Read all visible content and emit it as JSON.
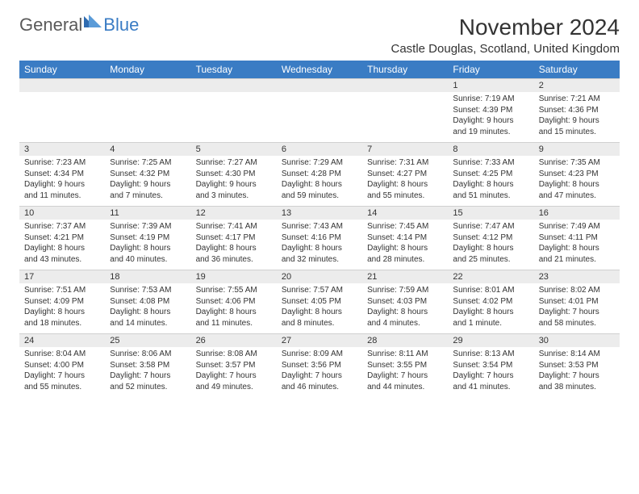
{
  "logo": {
    "text1": "General",
    "text2": "Blue"
  },
  "title": "November 2024",
  "location": "Castle Douglas, Scotland, United Kingdom",
  "colors": {
    "header_bg": "#3a7cc4",
    "header_text": "#ffffff",
    "daynum_bg": "#ececec",
    "text": "#333333",
    "logo_gray": "#5a5a5a",
    "logo_blue": "#3a7cc4"
  },
  "daynames": [
    "Sunday",
    "Monday",
    "Tuesday",
    "Wednesday",
    "Thursday",
    "Friday",
    "Saturday"
  ],
  "weeks": [
    [
      {
        "num": "",
        "sunrise": "",
        "sunset": "",
        "dl1": "",
        "dl2": ""
      },
      {
        "num": "",
        "sunrise": "",
        "sunset": "",
        "dl1": "",
        "dl2": ""
      },
      {
        "num": "",
        "sunrise": "",
        "sunset": "",
        "dl1": "",
        "dl2": ""
      },
      {
        "num": "",
        "sunrise": "",
        "sunset": "",
        "dl1": "",
        "dl2": ""
      },
      {
        "num": "",
        "sunrise": "",
        "sunset": "",
        "dl1": "",
        "dl2": ""
      },
      {
        "num": "1",
        "sunrise": "Sunrise: 7:19 AM",
        "sunset": "Sunset: 4:39 PM",
        "dl1": "Daylight: 9 hours",
        "dl2": "and 19 minutes."
      },
      {
        "num": "2",
        "sunrise": "Sunrise: 7:21 AM",
        "sunset": "Sunset: 4:36 PM",
        "dl1": "Daylight: 9 hours",
        "dl2": "and 15 minutes."
      }
    ],
    [
      {
        "num": "3",
        "sunrise": "Sunrise: 7:23 AM",
        "sunset": "Sunset: 4:34 PM",
        "dl1": "Daylight: 9 hours",
        "dl2": "and 11 minutes."
      },
      {
        "num": "4",
        "sunrise": "Sunrise: 7:25 AM",
        "sunset": "Sunset: 4:32 PM",
        "dl1": "Daylight: 9 hours",
        "dl2": "and 7 minutes."
      },
      {
        "num": "5",
        "sunrise": "Sunrise: 7:27 AM",
        "sunset": "Sunset: 4:30 PM",
        "dl1": "Daylight: 9 hours",
        "dl2": "and 3 minutes."
      },
      {
        "num": "6",
        "sunrise": "Sunrise: 7:29 AM",
        "sunset": "Sunset: 4:28 PM",
        "dl1": "Daylight: 8 hours",
        "dl2": "and 59 minutes."
      },
      {
        "num": "7",
        "sunrise": "Sunrise: 7:31 AM",
        "sunset": "Sunset: 4:27 PM",
        "dl1": "Daylight: 8 hours",
        "dl2": "and 55 minutes."
      },
      {
        "num": "8",
        "sunrise": "Sunrise: 7:33 AM",
        "sunset": "Sunset: 4:25 PM",
        "dl1": "Daylight: 8 hours",
        "dl2": "and 51 minutes."
      },
      {
        "num": "9",
        "sunrise": "Sunrise: 7:35 AM",
        "sunset": "Sunset: 4:23 PM",
        "dl1": "Daylight: 8 hours",
        "dl2": "and 47 minutes."
      }
    ],
    [
      {
        "num": "10",
        "sunrise": "Sunrise: 7:37 AM",
        "sunset": "Sunset: 4:21 PM",
        "dl1": "Daylight: 8 hours",
        "dl2": "and 43 minutes."
      },
      {
        "num": "11",
        "sunrise": "Sunrise: 7:39 AM",
        "sunset": "Sunset: 4:19 PM",
        "dl1": "Daylight: 8 hours",
        "dl2": "and 40 minutes."
      },
      {
        "num": "12",
        "sunrise": "Sunrise: 7:41 AM",
        "sunset": "Sunset: 4:17 PM",
        "dl1": "Daylight: 8 hours",
        "dl2": "and 36 minutes."
      },
      {
        "num": "13",
        "sunrise": "Sunrise: 7:43 AM",
        "sunset": "Sunset: 4:16 PM",
        "dl1": "Daylight: 8 hours",
        "dl2": "and 32 minutes."
      },
      {
        "num": "14",
        "sunrise": "Sunrise: 7:45 AM",
        "sunset": "Sunset: 4:14 PM",
        "dl1": "Daylight: 8 hours",
        "dl2": "and 28 minutes."
      },
      {
        "num": "15",
        "sunrise": "Sunrise: 7:47 AM",
        "sunset": "Sunset: 4:12 PM",
        "dl1": "Daylight: 8 hours",
        "dl2": "and 25 minutes."
      },
      {
        "num": "16",
        "sunrise": "Sunrise: 7:49 AM",
        "sunset": "Sunset: 4:11 PM",
        "dl1": "Daylight: 8 hours",
        "dl2": "and 21 minutes."
      }
    ],
    [
      {
        "num": "17",
        "sunrise": "Sunrise: 7:51 AM",
        "sunset": "Sunset: 4:09 PM",
        "dl1": "Daylight: 8 hours",
        "dl2": "and 18 minutes."
      },
      {
        "num": "18",
        "sunrise": "Sunrise: 7:53 AM",
        "sunset": "Sunset: 4:08 PM",
        "dl1": "Daylight: 8 hours",
        "dl2": "and 14 minutes."
      },
      {
        "num": "19",
        "sunrise": "Sunrise: 7:55 AM",
        "sunset": "Sunset: 4:06 PM",
        "dl1": "Daylight: 8 hours",
        "dl2": "and 11 minutes."
      },
      {
        "num": "20",
        "sunrise": "Sunrise: 7:57 AM",
        "sunset": "Sunset: 4:05 PM",
        "dl1": "Daylight: 8 hours",
        "dl2": "and 8 minutes."
      },
      {
        "num": "21",
        "sunrise": "Sunrise: 7:59 AM",
        "sunset": "Sunset: 4:03 PM",
        "dl1": "Daylight: 8 hours",
        "dl2": "and 4 minutes."
      },
      {
        "num": "22",
        "sunrise": "Sunrise: 8:01 AM",
        "sunset": "Sunset: 4:02 PM",
        "dl1": "Daylight: 8 hours",
        "dl2": "and 1 minute."
      },
      {
        "num": "23",
        "sunrise": "Sunrise: 8:02 AM",
        "sunset": "Sunset: 4:01 PM",
        "dl1": "Daylight: 7 hours",
        "dl2": "and 58 minutes."
      }
    ],
    [
      {
        "num": "24",
        "sunrise": "Sunrise: 8:04 AM",
        "sunset": "Sunset: 4:00 PM",
        "dl1": "Daylight: 7 hours",
        "dl2": "and 55 minutes."
      },
      {
        "num": "25",
        "sunrise": "Sunrise: 8:06 AM",
        "sunset": "Sunset: 3:58 PM",
        "dl1": "Daylight: 7 hours",
        "dl2": "and 52 minutes."
      },
      {
        "num": "26",
        "sunrise": "Sunrise: 8:08 AM",
        "sunset": "Sunset: 3:57 PM",
        "dl1": "Daylight: 7 hours",
        "dl2": "and 49 minutes."
      },
      {
        "num": "27",
        "sunrise": "Sunrise: 8:09 AM",
        "sunset": "Sunset: 3:56 PM",
        "dl1": "Daylight: 7 hours",
        "dl2": "and 46 minutes."
      },
      {
        "num": "28",
        "sunrise": "Sunrise: 8:11 AM",
        "sunset": "Sunset: 3:55 PM",
        "dl1": "Daylight: 7 hours",
        "dl2": "and 44 minutes."
      },
      {
        "num": "29",
        "sunrise": "Sunrise: 8:13 AM",
        "sunset": "Sunset: 3:54 PM",
        "dl1": "Daylight: 7 hours",
        "dl2": "and 41 minutes."
      },
      {
        "num": "30",
        "sunrise": "Sunrise: 8:14 AM",
        "sunset": "Sunset: 3:53 PM",
        "dl1": "Daylight: 7 hours",
        "dl2": "and 38 minutes."
      }
    ]
  ]
}
